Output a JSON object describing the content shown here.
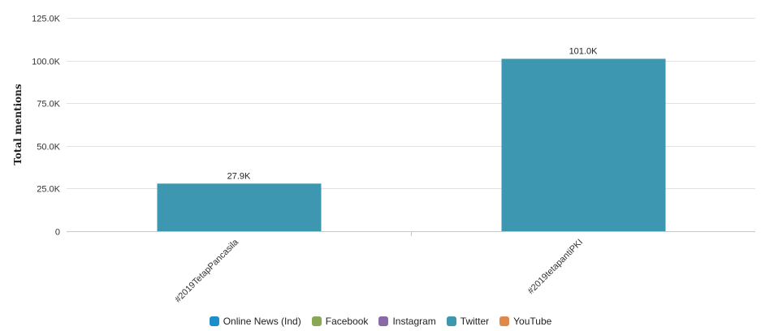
{
  "chart_data": {
    "type": "bar",
    "categories": [
      "#2019TetapPancasila",
      "#2019tetapantiPKI"
    ],
    "series": [
      {
        "name": "Online News (Ind)",
        "color": "#1a8fc9",
        "values": [
          0,
          0
        ]
      },
      {
        "name": "Facebook",
        "color": "#8aa853",
        "values": [
          0,
          0
        ]
      },
      {
        "name": "Instagram",
        "color": "#8a6aa6",
        "values": [
          0,
          0
        ]
      },
      {
        "name": "Twitter",
        "color": "#3e97b0",
        "values": [
          27900,
          101000
        ]
      },
      {
        "name": "YouTube",
        "color": "#e0884a",
        "values": [
          0,
          0
        ]
      }
    ],
    "data_labels": [
      "27.9K",
      "101.0K"
    ],
    "ylabel": "Total mentions",
    "xlabel": "",
    "ylim": [
      0,
      125000
    ],
    "yticks": [
      {
        "value": 0,
        "label": "0"
      },
      {
        "value": 25000,
        "label": "25.0K"
      },
      {
        "value": 50000,
        "label": "50.0K"
      },
      {
        "value": 75000,
        "label": "75.0K"
      },
      {
        "value": 100000,
        "label": "100.0K"
      },
      {
        "value": 125000,
        "label": "125.0K"
      }
    ],
    "grid": true,
    "legend_position": "bottom-center"
  }
}
